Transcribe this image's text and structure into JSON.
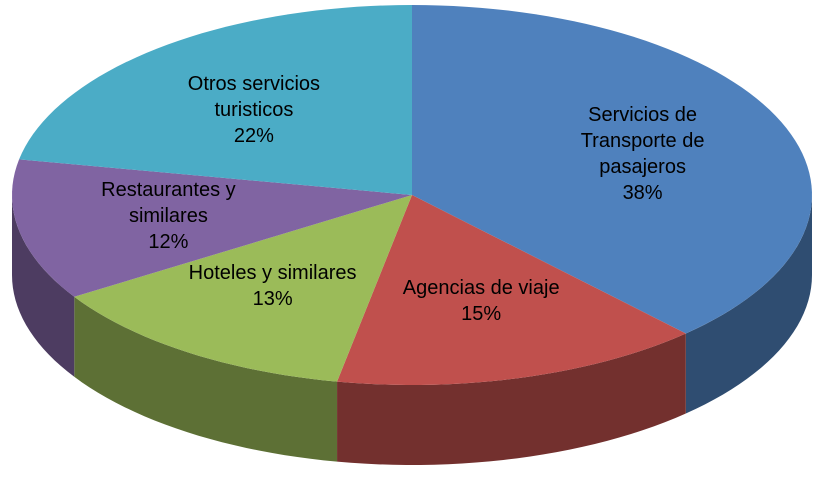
{
  "chart_data": {
    "type": "pie",
    "categories": [
      "Servicios de Transporte de pasajeros",
      "Agencias de viaje",
      "Hoteles y similares",
      "Restaurantes y similares",
      "Otros servicios turisticos"
    ],
    "values": [
      38,
      15,
      13,
      12,
      22
    ],
    "value_labels": [
      "38%",
      "15%",
      "13%",
      "12%",
      "22%"
    ],
    "colors": [
      "#4f81bd",
      "#c0504d",
      "#9bbb59",
      "#8064a2",
      "#4bacc6"
    ]
  }
}
